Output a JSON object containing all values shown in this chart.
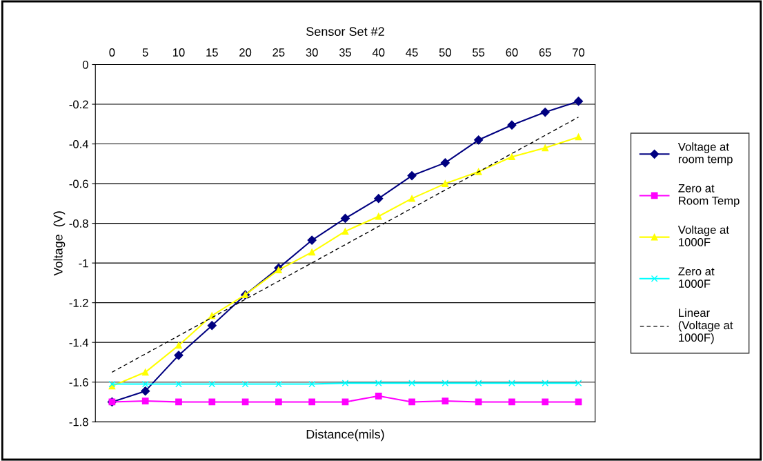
{
  "chart_data": {
    "type": "line",
    "title": "Sensor Set #2",
    "xlabel": "Distance(mils)",
    "ylabel": "Voltage  (V)",
    "categories": [
      "0",
      "5",
      "10",
      "15",
      "20",
      "25",
      "30",
      "35",
      "40",
      "45",
      "50",
      "55",
      "60",
      "65",
      "70"
    ],
    "ylim": [
      -1.8,
      0
    ],
    "yticks": [
      -1.8,
      -1.6,
      -1.4,
      -1.2,
      -1,
      -0.8,
      -0.6,
      -0.4,
      -0.2,
      0
    ],
    "grid": "y",
    "legend": "right",
    "series": [
      {
        "name": "Voltage at\nroom temp",
        "color": "#000080",
        "marker": "diamond",
        "values": [
          -1.7,
          -1.645,
          -1.465,
          -1.315,
          -1.16,
          -1.025,
          -0.885,
          -0.775,
          -0.675,
          -0.56,
          -0.495,
          -0.38,
          -0.305,
          -0.24,
          -0.185
        ]
      },
      {
        "name": "Zero at\nRoom Temp",
        "color": "#ff00ff",
        "marker": "square",
        "values": [
          -1.7,
          -1.695,
          -1.7,
          -1.7,
          -1.7,
          -1.7,
          -1.7,
          -1.7,
          -1.67,
          -1.7,
          -1.695,
          -1.7,
          -1.7,
          -1.7,
          -1.7
        ]
      },
      {
        "name": "Voltage at\n1000F",
        "color": "#ffff00",
        "marker": "triangle",
        "values": [
          -1.62,
          -1.55,
          -1.415,
          -1.265,
          -1.16,
          -1.035,
          -0.945,
          -0.84,
          -0.765,
          -0.675,
          -0.6,
          -0.54,
          -0.465,
          -0.42,
          -0.365
        ]
      },
      {
        "name": "Zero at\n1000F",
        "color": "#00ffff",
        "marker": "cross",
        "values": [
          -1.61,
          -1.61,
          -1.61,
          -1.61,
          -1.61,
          -1.61,
          -1.61,
          -1.605,
          -1.605,
          -1.605,
          -1.605,
          -1.605,
          -1.605,
          -1.605,
          -1.605
        ]
      },
      {
        "name": "Linear\n(Voltage at\n1000F)",
        "color": "#000000",
        "marker": "none",
        "line_style": "dashed",
        "x": [
          "0",
          "70"
        ],
        "values": [
          -1.55,
          -0.265
        ]
      }
    ]
  }
}
